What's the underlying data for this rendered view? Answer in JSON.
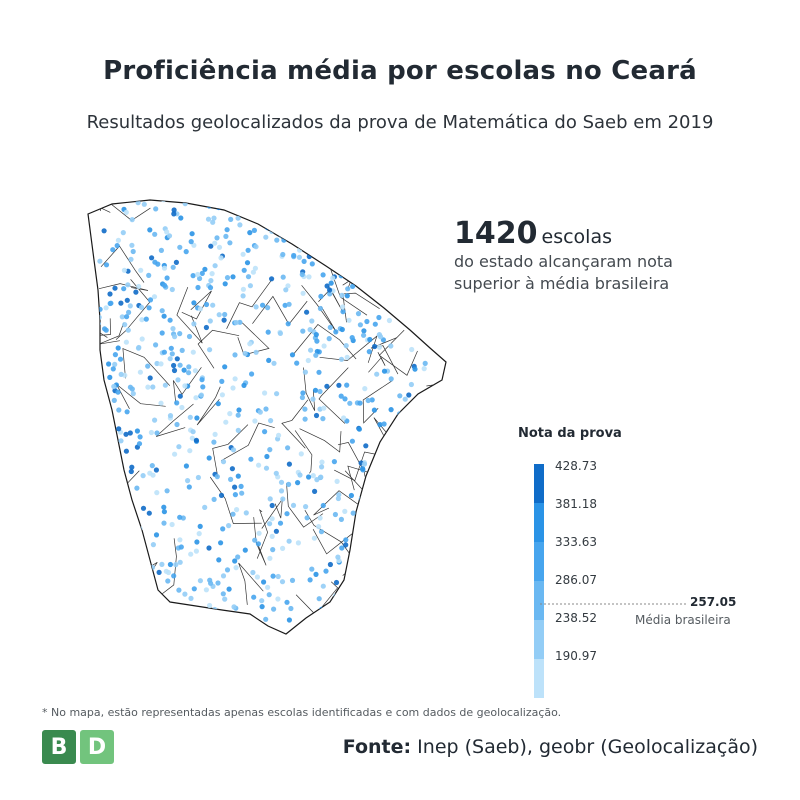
{
  "title": "Proficiência média por escolas no Ceará",
  "subtitle": "Resultados geolocalizados da prova de Matemática do Saeb em 2019",
  "callout": {
    "count": "1420",
    "unit": "escolas",
    "line1": "do estado alcançaram nota",
    "line2": "superior à média brasileira"
  },
  "legend": {
    "title": "Nota da prova",
    "ticks": [
      "428.73",
      "381.18",
      "333.63",
      "286.07",
      "238.52",
      "190.97"
    ],
    "colors": [
      "#0f6cc8",
      "#2a93e6",
      "#47a5ee",
      "#6ab8f2",
      "#93cdf6",
      "#bde2fa"
    ],
    "mean_value": "257.05",
    "mean_label": "Média brasileira"
  },
  "footnote": "* No mapa, estão representadas apenas escolas identificadas e com dados de geolocalização.",
  "logo": {
    "left": "B",
    "right": "D"
  },
  "source": {
    "label": "Fonte:",
    "text": "Inep (Saeb), geobr (Geolocalização)"
  },
  "map_region": "Ceará",
  "map_style": {
    "outline": "#1a1a1a",
    "fill": "#ffffff",
    "point_colors": [
      "#0f6cc8",
      "#2a93e6",
      "#47a5ee",
      "#6ab8f2",
      "#93cdf6",
      "#bde2fa"
    ]
  }
}
